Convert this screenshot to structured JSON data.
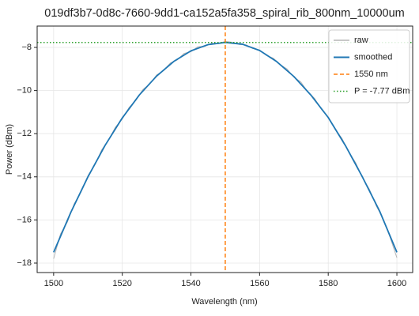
{
  "chart_data": {
    "type": "line",
    "title": "019df3b7-0d8c-7660-9dd1-ca152a5fa358_spiral_rib_800nm_10000um",
    "x_label": "Wavelength (nm)",
    "y_label": "Power (dBm)",
    "xlim": [
      1495.2,
      1604.6
    ],
    "ylim": [
      -18.44,
      -7.01
    ],
    "xticks": [
      1500,
      1520,
      1540,
      1560,
      1580,
      1600
    ],
    "yticks": [
      {
        "value": -18,
        "label": "−18"
      },
      {
        "value": -16,
        "label": "−16"
      },
      {
        "value": -14,
        "label": "−14"
      },
      {
        "value": -12,
        "label": "−12"
      },
      {
        "value": -10,
        "label": "−10"
      },
      {
        "value": -8,
        "label": "−8"
      }
    ],
    "grid": true,
    "legend": "upper right",
    "series": [
      {
        "name": "raw",
        "color": "#b5b5b5",
        "x": [
          1500,
          1502,
          1504,
          1506,
          1508,
          1510,
          1512,
          1514,
          1516,
          1518,
          1520,
          1522,
          1524,
          1526,
          1528,
          1530,
          1532,
          1534,
          1536,
          1538,
          1540,
          1542,
          1544,
          1546,
          1548,
          1550,
          1552,
          1554,
          1556,
          1558,
          1560,
          1562,
          1564,
          1566,
          1568,
          1570,
          1572,
          1574,
          1576,
          1578,
          1580,
          1582,
          1584,
          1586,
          1588,
          1590,
          1592,
          1594,
          1596,
          1598,
          1600
        ],
        "values": [
          -17.8,
          -16.65,
          -16.1,
          -15.25,
          -14.7,
          -13.95,
          -13.45,
          -12.75,
          -12.3,
          -11.7,
          -11.32,
          -10.78,
          -10.45,
          -9.95,
          -9.7,
          -9.28,
          -9.08,
          -8.72,
          -8.58,
          -8.28,
          -8.2,
          -7.97,
          -7.95,
          -7.8,
          -7.83,
          -7.72,
          -7.76,
          -7.86,
          -7.88,
          -8.05,
          -8.12,
          -8.37,
          -8.5,
          -8.8,
          -9.0,
          -9.38,
          -9.6,
          -10.05,
          -10.36,
          -10.87,
          -11.22,
          -11.8,
          -12.22,
          -12.86,
          -13.35,
          -14.05,
          -14.58,
          -15.35,
          -15.95,
          -16.8,
          -17.75
        ]
      },
      {
        "name": "smoothed",
        "color": "#1f77b4",
        "x": [
          1500,
          1505,
          1510,
          1515,
          1520,
          1525,
          1530,
          1535,
          1540,
          1545,
          1550,
          1555,
          1560,
          1565,
          1570,
          1575,
          1580,
          1585,
          1590,
          1595,
          1600
        ],
        "values": [
          -17.5,
          -15.65,
          -14.0,
          -12.54,
          -11.27,
          -10.2,
          -9.33,
          -8.65,
          -8.16,
          -7.87,
          -7.77,
          -7.85,
          -8.14,
          -8.66,
          -9.35,
          -10.22,
          -11.25,
          -12.55,
          -14.02,
          -15.6,
          -17.5
        ]
      }
    ],
    "vline": {
      "name": "1550 nm",
      "x": 1550,
      "color": "#ff7f0e"
    },
    "hline": {
      "name": "P = -7.77 dBm",
      "y": -7.77,
      "color": "#2ca02c"
    }
  }
}
